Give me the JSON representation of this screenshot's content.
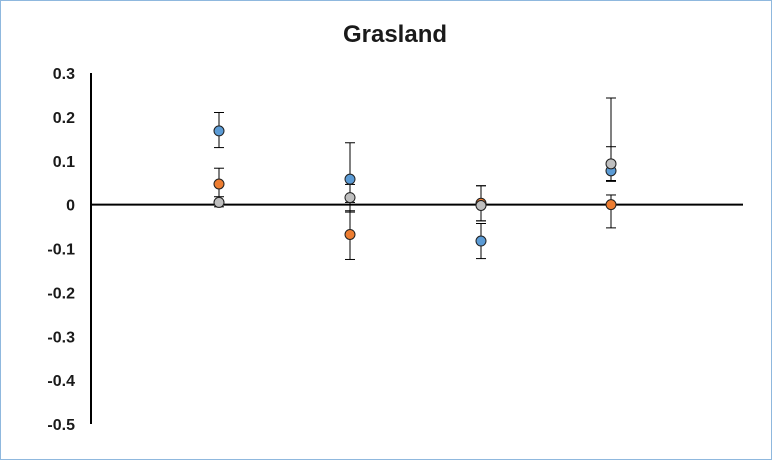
{
  "chart_data": {
    "type": "scatter",
    "title": "Grasland",
    "xlabel": "",
    "ylabel": "",
    "ylim": [
      -0.5,
      0.3
    ],
    "ytick_labels": [
      "0.3",
      "0.2",
      "0.1",
      "0",
      "-0.1",
      "-0.2",
      "-0.3",
      "-0.4",
      "-0.5"
    ],
    "ytick_values": [
      0.3,
      0.2,
      0.1,
      0,
      -0.1,
      -0.2,
      -0.3,
      -0.4,
      -0.5
    ],
    "x_positions": [
      1,
      2,
      3,
      4
    ],
    "grid": false,
    "legend": "none",
    "series": [
      {
        "color": "#5b9bd5",
        "values": [
          0.168,
          0.058,
          -0.083,
          0.077
        ],
        "err_low": [
          0.038,
          0.075,
          0.04,
          0.022
        ],
        "err_high": [
          0.042,
          0.083,
          0.04,
          0.055
        ]
      },
      {
        "color": "#ed7d31",
        "values": [
          0.047,
          -0.068,
          0.003,
          0.0
        ],
        "err_low": [
          0.04,
          0.057,
          0.04,
          0.053
        ],
        "err_high": [
          0.036,
          0.073,
          0.04,
          0.022
        ]
      },
      {
        "color": "#bfbfbf",
        "values": [
          0.005,
          0.016,
          -0.002,
          0.093
        ],
        "err_low": [
          0.01,
          0.03,
          0.035,
          0.04
        ],
        "err_high": [
          0.013,
          0.03,
          0.045,
          0.15
        ]
      }
    ]
  }
}
